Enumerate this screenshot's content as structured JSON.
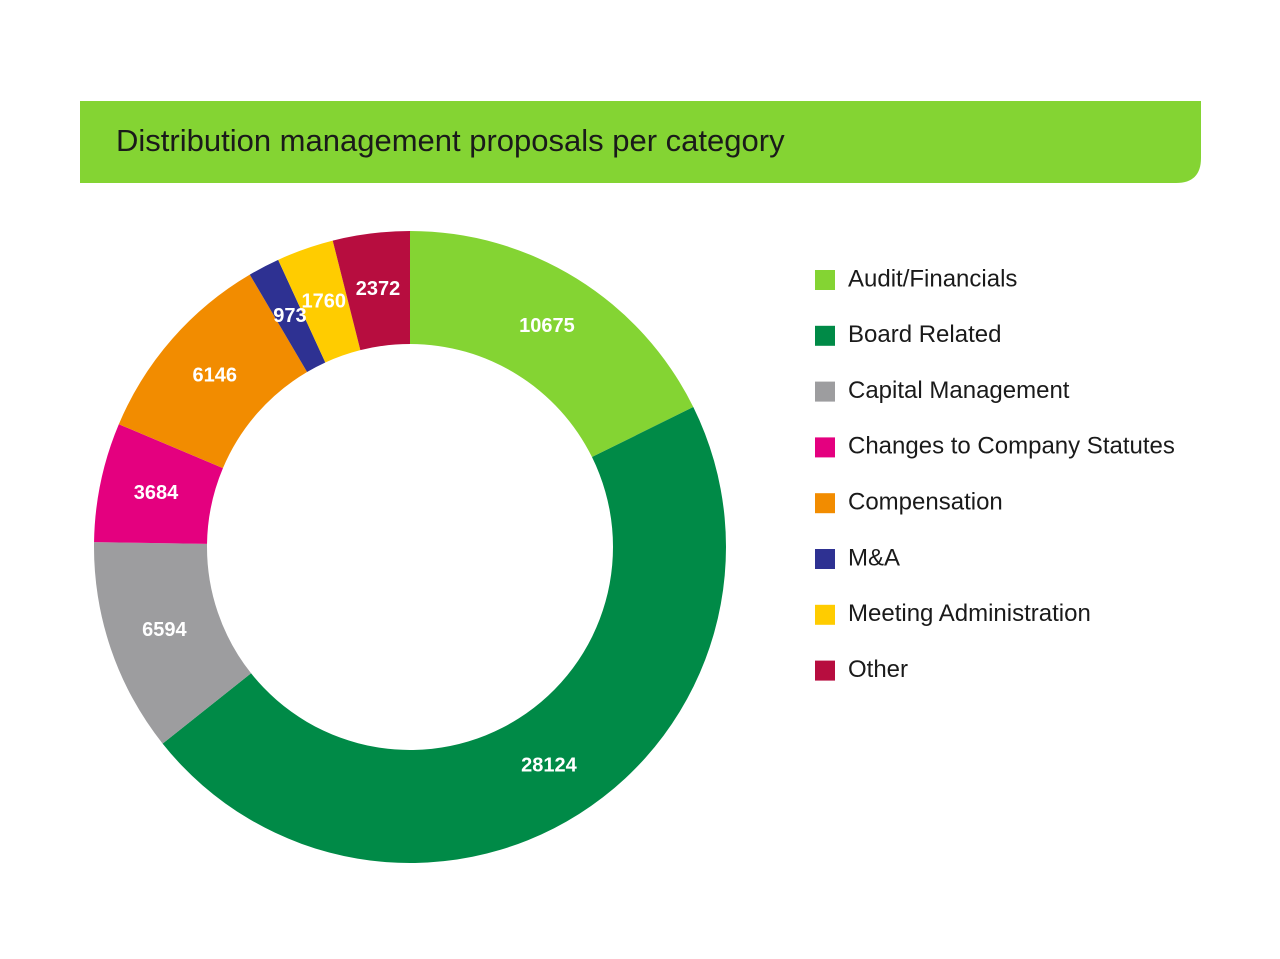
{
  "chart_data": {
    "type": "donut",
    "title": "Distribution management proposals per category",
    "categories": [
      "Audit/Financials",
      "Board Related",
      "Capital Management",
      "Changes to Company Statutes",
      "Compensation",
      "M&A",
      "Meeting Administration",
      "Other"
    ],
    "values": [
      10675,
      28124,
      6594,
      3684,
      6146,
      973,
      1760,
      2372
    ],
    "colors": [
      "#84d433",
      "#008a47",
      "#9d9d9f",
      "#e4007f",
      "#f28c00",
      "#2e3192",
      "#ffcc00",
      "#b70d3f"
    ],
    "legend": "right"
  }
}
